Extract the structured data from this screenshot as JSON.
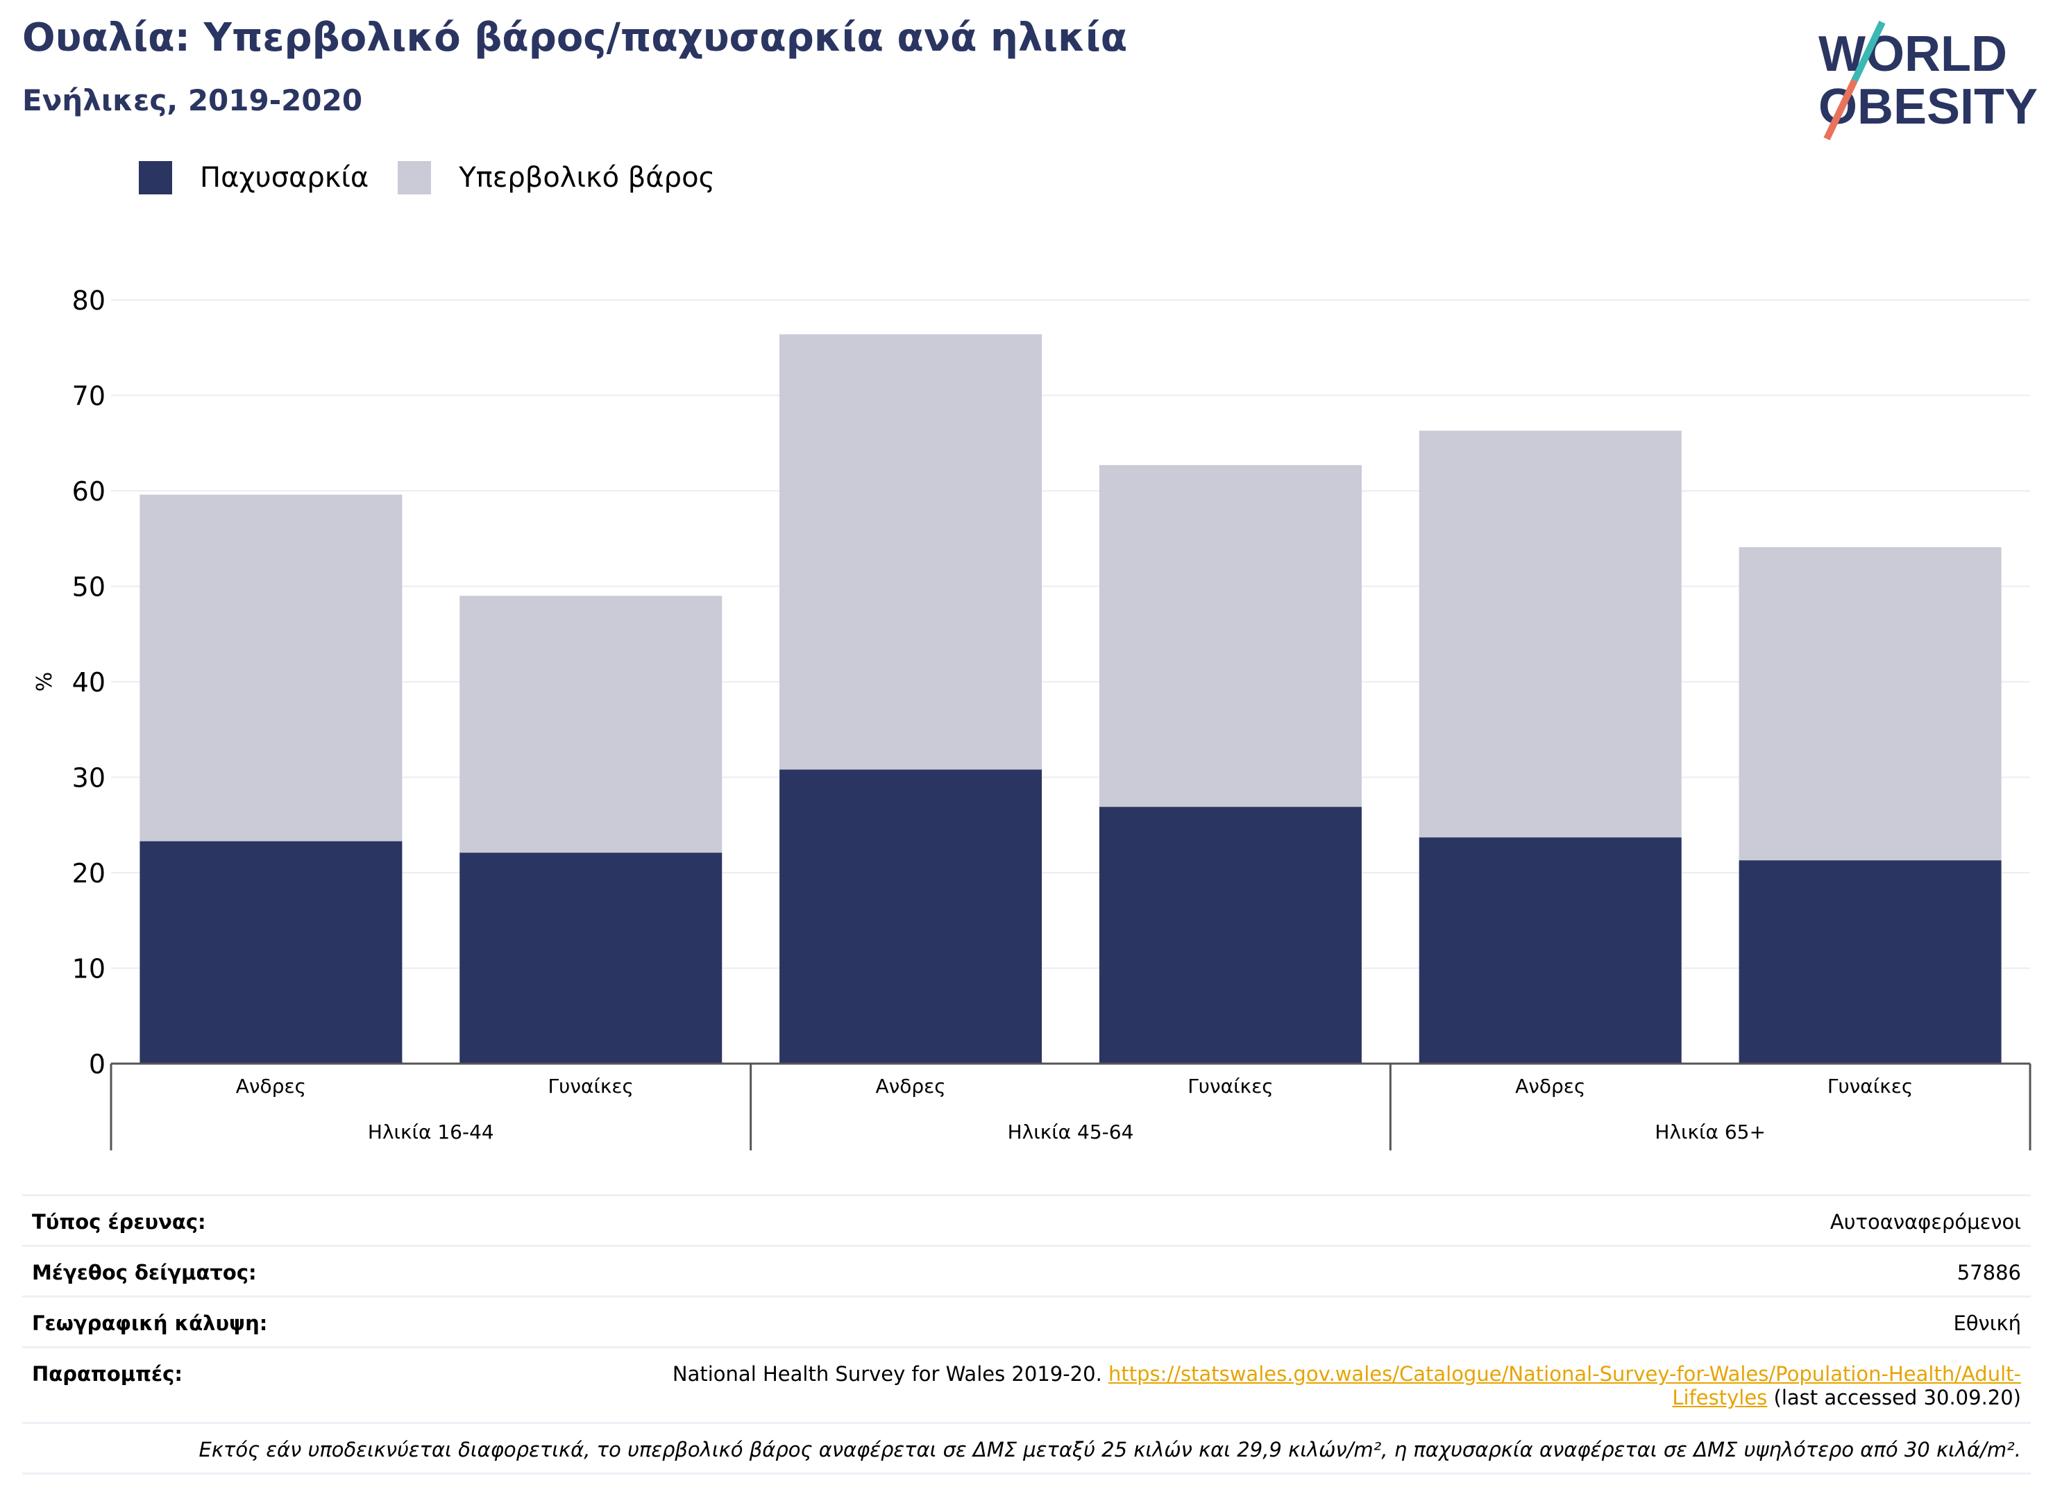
{
  "title": "Ουαλία: Υπερβολικό βάρος/παχυσαρκία ανά ηλικία",
  "subtitle": "Ενήλικες, 2019-2020",
  "logo": {
    "line1": "WORLD",
    "line2": "OBESITY"
  },
  "colors": {
    "obesity": "#2a3562",
    "overweight": "#cacbd6",
    "title": "#2a3562",
    "link": "#e6a400"
  },
  "chart_data": {
    "type": "bar",
    "stacked": true,
    "ylabel": "%",
    "ylim": [
      0,
      80
    ],
    "yticks": [
      0,
      10,
      20,
      30,
      40,
      50,
      60,
      70,
      80
    ],
    "grid": true,
    "legend_position": "top-left",
    "categories": [
      "Ανδρες",
      "Γυναίκες",
      "Ανδρες",
      "Γυναίκες",
      "Ανδρες",
      "Γυναίκες"
    ],
    "groups": [
      {
        "label": "Ηλικία 16-44",
        "categories": [
          0,
          1
        ]
      },
      {
        "label": "Ηλικία 45-64",
        "categories": [
          2,
          3
        ]
      },
      {
        "label": "Ηλικία 65+",
        "categories": [
          4,
          5
        ]
      }
    ],
    "series": [
      {
        "name": "Παχυσαρκία",
        "values": [
          23.3,
          22.1,
          30.8,
          26.9,
          23.7,
          21.3
        ]
      },
      {
        "name": "Υπερβολικό βάρος",
        "values": [
          36.3,
          26.9,
          45.6,
          35.8,
          42.6,
          32.8
        ]
      }
    ]
  },
  "meta": {
    "survey_type": {
      "label": "Τύπος έρευνας:",
      "value": "Αυτοαναφερόμενοι"
    },
    "sample_size": {
      "label": "Μέγεθος δείγματος:",
      "value": "57886"
    },
    "coverage": {
      "label": "Γεωγραφική κάλυψη:",
      "value": "Εθνική"
    },
    "references": {
      "label": "Παραπομπές:",
      "text_before": "National Health Survey for Wales 2019-20. ",
      "link_line1": "https://statswales.gov.wales/Catalogue/National-Survey-for-Wales/Population-Health/Adult-",
      "link_line2": "Lifestyles",
      "text_after": " (last accessed 30.09.20)"
    },
    "note": "Εκτός εάν υποδεικνύεται διαφορετικά, το υπερβολικό βάρος αναφέρεται σε ΔΜΣ μεταξύ 25 κιλών και 29,9 κιλών/m², η παχυσαρκία αναφέρεται σε ΔΜΣ υψηλότερο από 30 κιλά/m²."
  }
}
